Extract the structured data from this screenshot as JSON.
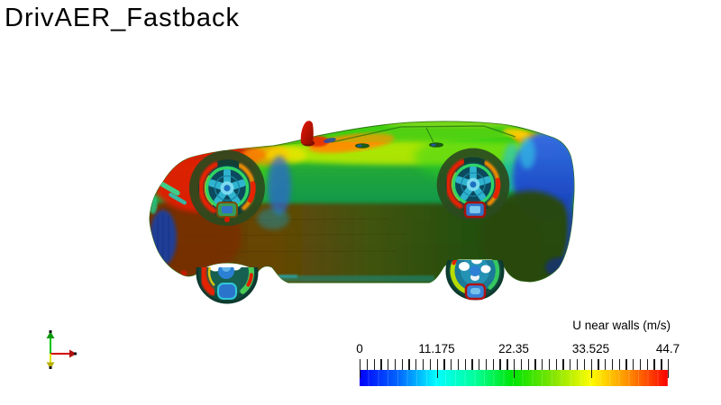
{
  "window": {
    "title": "DrivAER_Fastback"
  },
  "viewport": {
    "description": "Side view of DrivAer fastback car model, surface colored by near-wall velocity magnitude (rainbow colormap: blue = slow, red = fast); dark shaded underbody, red stagnation zone on front fender, blue wake zone on rear fascia, multicolored wheel rims",
    "surface_palette": [
      "#e01a00",
      "#ff9e00",
      "#c6ea04",
      "#3ecb10",
      "#0e8c50",
      "#6e3d06",
      "#2c4a10",
      "#1c41c4",
      "#23c3dd"
    ]
  },
  "colorbar": {
    "title": "U near walls (m/s)",
    "tick_labels": [
      "0",
      "11.175",
      "22.35",
      "33.525",
      "44.7"
    ],
    "range_min": 0,
    "range_max": 44.7,
    "minor_ticks_between_labels": 10,
    "gradient_stops": [
      "#0101fb",
      "#0166ff",
      "#01ffff",
      "#01ff9a",
      "#01e401",
      "#7fe401",
      "#fdfd01",
      "#ff8b01",
      "#fb0101"
    ]
  },
  "axes_widget": {
    "up_axis_color": "#00c400",
    "right_axis_color": "#d40000",
    "down_axis_color": "#e4e400"
  }
}
